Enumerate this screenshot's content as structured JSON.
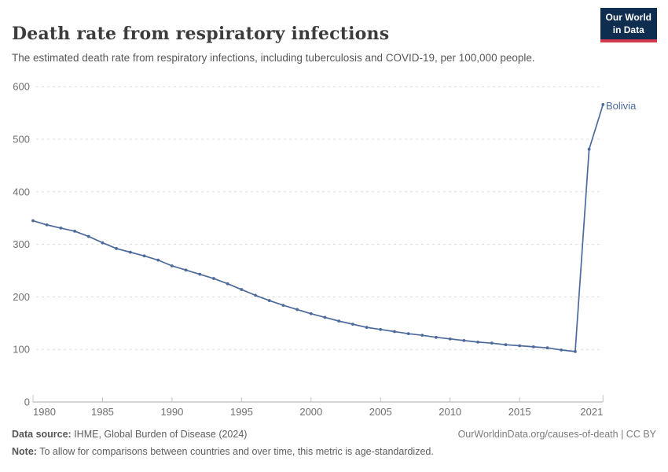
{
  "header": {
    "title": "Death rate from respiratory infections",
    "subtitle": "The estimated death rate from respiratory infections, including tuberculosis and COVID-19, per 100,000 people.",
    "logo": {
      "line1": "Our World",
      "line2": "in Data",
      "bg_color": "#0f2d4e",
      "stripe_color": "#d23a50"
    }
  },
  "chart_data": {
    "type": "line",
    "title": "Death rate from respiratory infections",
    "xlabel": "",
    "ylabel": "",
    "xlim": [
      1980,
      2021
    ],
    "ylim": [
      0,
      600
    ],
    "grid": "horizontal-dashed",
    "legend_position": "end-of-line-label",
    "xticks": [
      1980,
      1985,
      1990,
      1995,
      2000,
      2005,
      2010,
      2015,
      2021
    ],
    "yticks": [
      0,
      100,
      200,
      300,
      400,
      500,
      600
    ],
    "x": [
      1980,
      1981,
      1982,
      1983,
      1984,
      1985,
      1986,
      1987,
      1988,
      1989,
      1990,
      1991,
      1992,
      1993,
      1994,
      1995,
      1996,
      1997,
      1998,
      1999,
      2000,
      2001,
      2002,
      2003,
      2004,
      2005,
      2006,
      2007,
      2008,
      2009,
      2010,
      2011,
      2012,
      2013,
      2014,
      2015,
      2016,
      2017,
      2018,
      2019,
      2020,
      2021
    ],
    "series": [
      {
        "name": "Bolivia",
        "color": "#4c6a9c",
        "values": [
          345,
          337,
          331,
          325,
          315,
          303,
          292,
          285,
          278,
          270,
          259,
          251,
          243,
          235,
          225,
          214,
          203,
          193,
          184,
          176,
          168,
          161,
          154,
          148,
          142,
          138,
          134,
          130,
          127,
          123,
          120,
          117,
          114,
          112,
          109,
          107,
          105,
          103,
          99,
          96,
          481,
          566
        ]
      }
    ],
    "colors": {
      "gridline": "#dcdcdc",
      "axis_line": "#a8a8a8",
      "tick_mark": "#c4c4c4",
      "tick_label": "#6e6e6e"
    }
  },
  "footer": {
    "source_label": "Data source:",
    "source_text": " IHME, Global Burden of Disease (2024)",
    "attribution": "OurWorldinData.org/causes-of-death | CC BY",
    "note_label": "Note:",
    "note_text": " To allow for comparisons between countries and over time, this metric is age-standardized."
  }
}
